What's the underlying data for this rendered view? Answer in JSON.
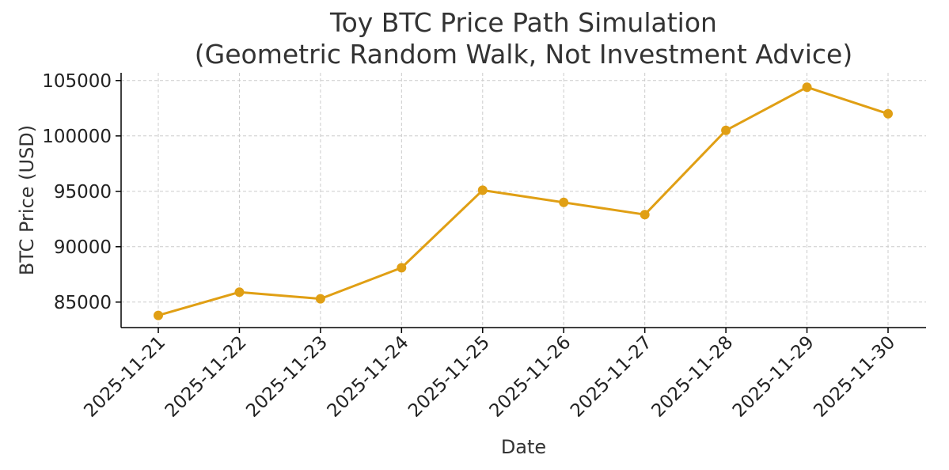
{
  "chart_data": {
    "type": "line",
    "title": "Toy BTC Price Path Simulation\n(Geometric Random Walk, Not Investment Advice)",
    "title_lines": [
      "Toy BTC Price Path Simulation",
      "(Geometric Random Walk, Not Investment Advice)"
    ],
    "xlabel": "Date",
    "ylabel": "BTC Price (USD)",
    "categories": [
      "2025-11-21",
      "2025-11-22",
      "2025-11-23",
      "2025-11-24",
      "2025-11-25",
      "2025-11-26",
      "2025-11-27",
      "2025-11-28",
      "2025-11-29",
      "2025-11-30"
    ],
    "series": [
      {
        "name": "BTC Price",
        "values": [
          83800,
          85900,
          85300,
          88100,
          95100,
          94000,
          92900,
          100500,
          104400,
          102000
        ],
        "color": "#e09f14"
      }
    ],
    "yticks": [
      85000,
      90000,
      95000,
      100000,
      105000
    ],
    "ylim": [
      82700,
      105700
    ],
    "grid": true,
    "legend": "none"
  }
}
